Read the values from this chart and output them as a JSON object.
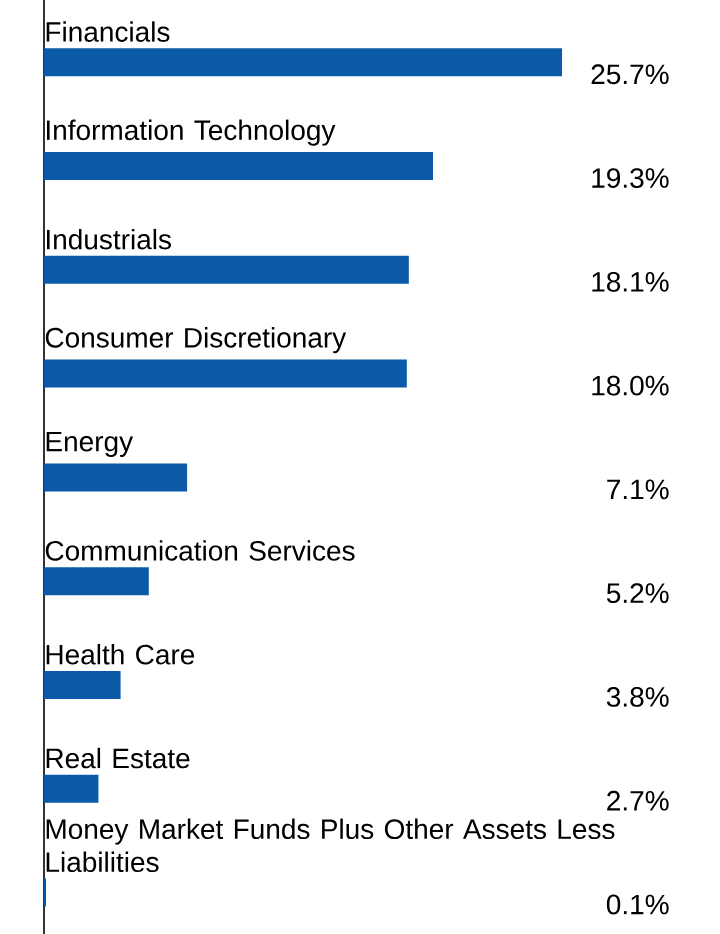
{
  "chart_data": {
    "type": "bar",
    "orientation": "horizontal",
    "categories": [
      "Financials",
      "Information Technology",
      "Industrials",
      "Consumer Discretionary",
      "Energy",
      "Communication Services",
      "Health Care",
      "Real Estate",
      "Money Market Funds Plus Other Assets Less Liabilities"
    ],
    "values": [
      25.7,
      19.3,
      18.1,
      18.0,
      7.1,
      5.2,
      3.8,
      2.7,
      0.1
    ],
    "value_labels": [
      "25.7%",
      "19.3%",
      "18.1%",
      "18.0%",
      "7.1%",
      "5.2%",
      "3.8%",
      "2.7%",
      "0.1%"
    ],
    "color": "#0a5aa8"
  }
}
